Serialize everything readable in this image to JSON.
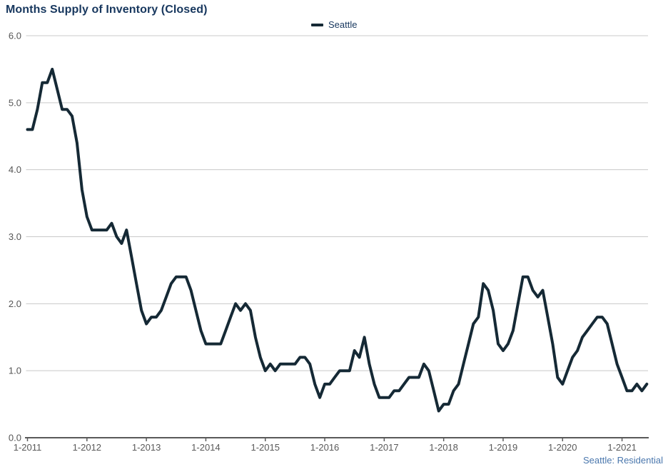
{
  "header": {
    "title": "Months Supply of Inventory (Closed)"
  },
  "legend": {
    "items": [
      {
        "label": "Seattle",
        "color": "#152935"
      }
    ]
  },
  "footer": {
    "note": "Seattle: Residential"
  },
  "colors": {
    "title_text": "#17375e",
    "series_line": "#152935",
    "gridline": "#c9c9c9",
    "axis_line": "#595959",
    "axis_text": "#595959",
    "footnote_text": "#4a77ad",
    "background": "#ffffff"
  },
  "chart_data": {
    "type": "line",
    "title": "Months Supply of Inventory (Closed)",
    "xlabel": "",
    "ylabel": "",
    "ylim": [
      0,
      6
    ],
    "grid": "horizontal",
    "legend_position": "top-center",
    "y_tick_labels": [
      "6.0",
      "5.0",
      "4.0",
      "3.0",
      "2.0",
      "1.0",
      "0.0"
    ],
    "y_tick_values": [
      6,
      5,
      4,
      3,
      2,
      1,
      0
    ],
    "x_tick_labels": [
      "1-2011",
      "1-2012",
      "1-2013",
      "1-2014",
      "1-2015",
      "1-2016",
      "1-2017",
      "1-2018",
      "1-2019",
      "1-2020",
      "1-2021"
    ],
    "x_tick_month_indices": [
      0,
      12,
      24,
      36,
      48,
      60,
      72,
      84,
      96,
      108,
      120
    ],
    "frequency": "monthly",
    "start_label": "1-2011",
    "end_label": "6-2021",
    "series": [
      {
        "name": "Seattle",
        "color": "#152935",
        "values": [
          4.6,
          4.6,
          4.9,
          5.3,
          5.3,
          5.5,
          5.2,
          4.9,
          4.9,
          4.8,
          4.4,
          3.7,
          3.3,
          3.1,
          3.1,
          3.1,
          3.1,
          3.2,
          3.0,
          2.9,
          3.1,
          2.7,
          2.3,
          1.9,
          1.7,
          1.8,
          1.8,
          1.9,
          2.1,
          2.3,
          2.4,
          2.4,
          2.4,
          2.2,
          1.9,
          1.6,
          1.4,
          1.4,
          1.4,
          1.4,
          1.6,
          1.8,
          2.0,
          1.9,
          2.0,
          1.9,
          1.5,
          1.2,
          1.0,
          1.1,
          1.0,
          1.1,
          1.1,
          1.1,
          1.1,
          1.2,
          1.2,
          1.1,
          0.8,
          0.6,
          0.8,
          0.8,
          0.9,
          1.0,
          1.0,
          1.0,
          1.3,
          1.2,
          1.5,
          1.1,
          0.8,
          0.6,
          0.6,
          0.6,
          0.7,
          0.7,
          0.8,
          0.9,
          0.9,
          0.9,
          1.1,
          1.0,
          0.7,
          0.4,
          0.5,
          0.5,
          0.7,
          0.8,
          1.1,
          1.4,
          1.7,
          1.8,
          2.3,
          2.2,
          1.9,
          1.4,
          1.3,
          1.4,
          1.6,
          2.0,
          2.4,
          2.4,
          2.2,
          2.1,
          2.2,
          1.8,
          1.4,
          0.9,
          0.8,
          1.0,
          1.2,
          1.3,
          1.5,
          1.6,
          1.7,
          1.8,
          1.8,
          1.7,
          1.4,
          1.1,
          0.9,
          0.7,
          0.7,
          0.8,
          0.7,
          0.8
        ]
      }
    ]
  }
}
